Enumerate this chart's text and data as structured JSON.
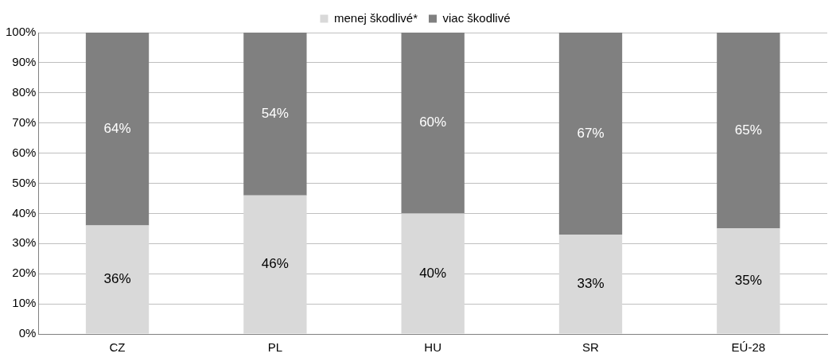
{
  "chart_data": {
    "type": "bar",
    "stacked": true,
    "categories": [
      "CZ",
      "PL",
      "HU",
      "SR",
      "EÚ-28"
    ],
    "series": [
      {
        "name": "menej škodlivé*",
        "color": "#d9d9d9",
        "values": [
          36,
          46,
          40,
          33,
          35
        ],
        "value_labels": [
          "36%",
          "46%",
          "40%",
          "33%",
          "35%"
        ]
      },
      {
        "name": "viac škodlivé",
        "color": "#808080",
        "values": [
          64,
          54,
          60,
          67,
          65
        ],
        "value_labels": [
          "64%",
          "54%",
          "60%",
          "67%",
          "65%"
        ]
      }
    ],
    "ylim": [
      0,
      100
    ],
    "yticks": [
      {
        "value": 0,
        "label": "0%"
      },
      {
        "value": 10,
        "label": "10%"
      },
      {
        "value": 20,
        "label": "20%"
      },
      {
        "value": 30,
        "label": "30%"
      },
      {
        "value": 40,
        "label": "40%"
      },
      {
        "value": 50,
        "label": "50%"
      },
      {
        "value": 60,
        "label": "60%"
      },
      {
        "value": 70,
        "label": "70%"
      },
      {
        "value": 80,
        "label": "80%"
      },
      {
        "value": 90,
        "label": "90%"
      },
      {
        "value": 100,
        "label": "100%"
      }
    ],
    "grid": "y",
    "legend": "top"
  }
}
